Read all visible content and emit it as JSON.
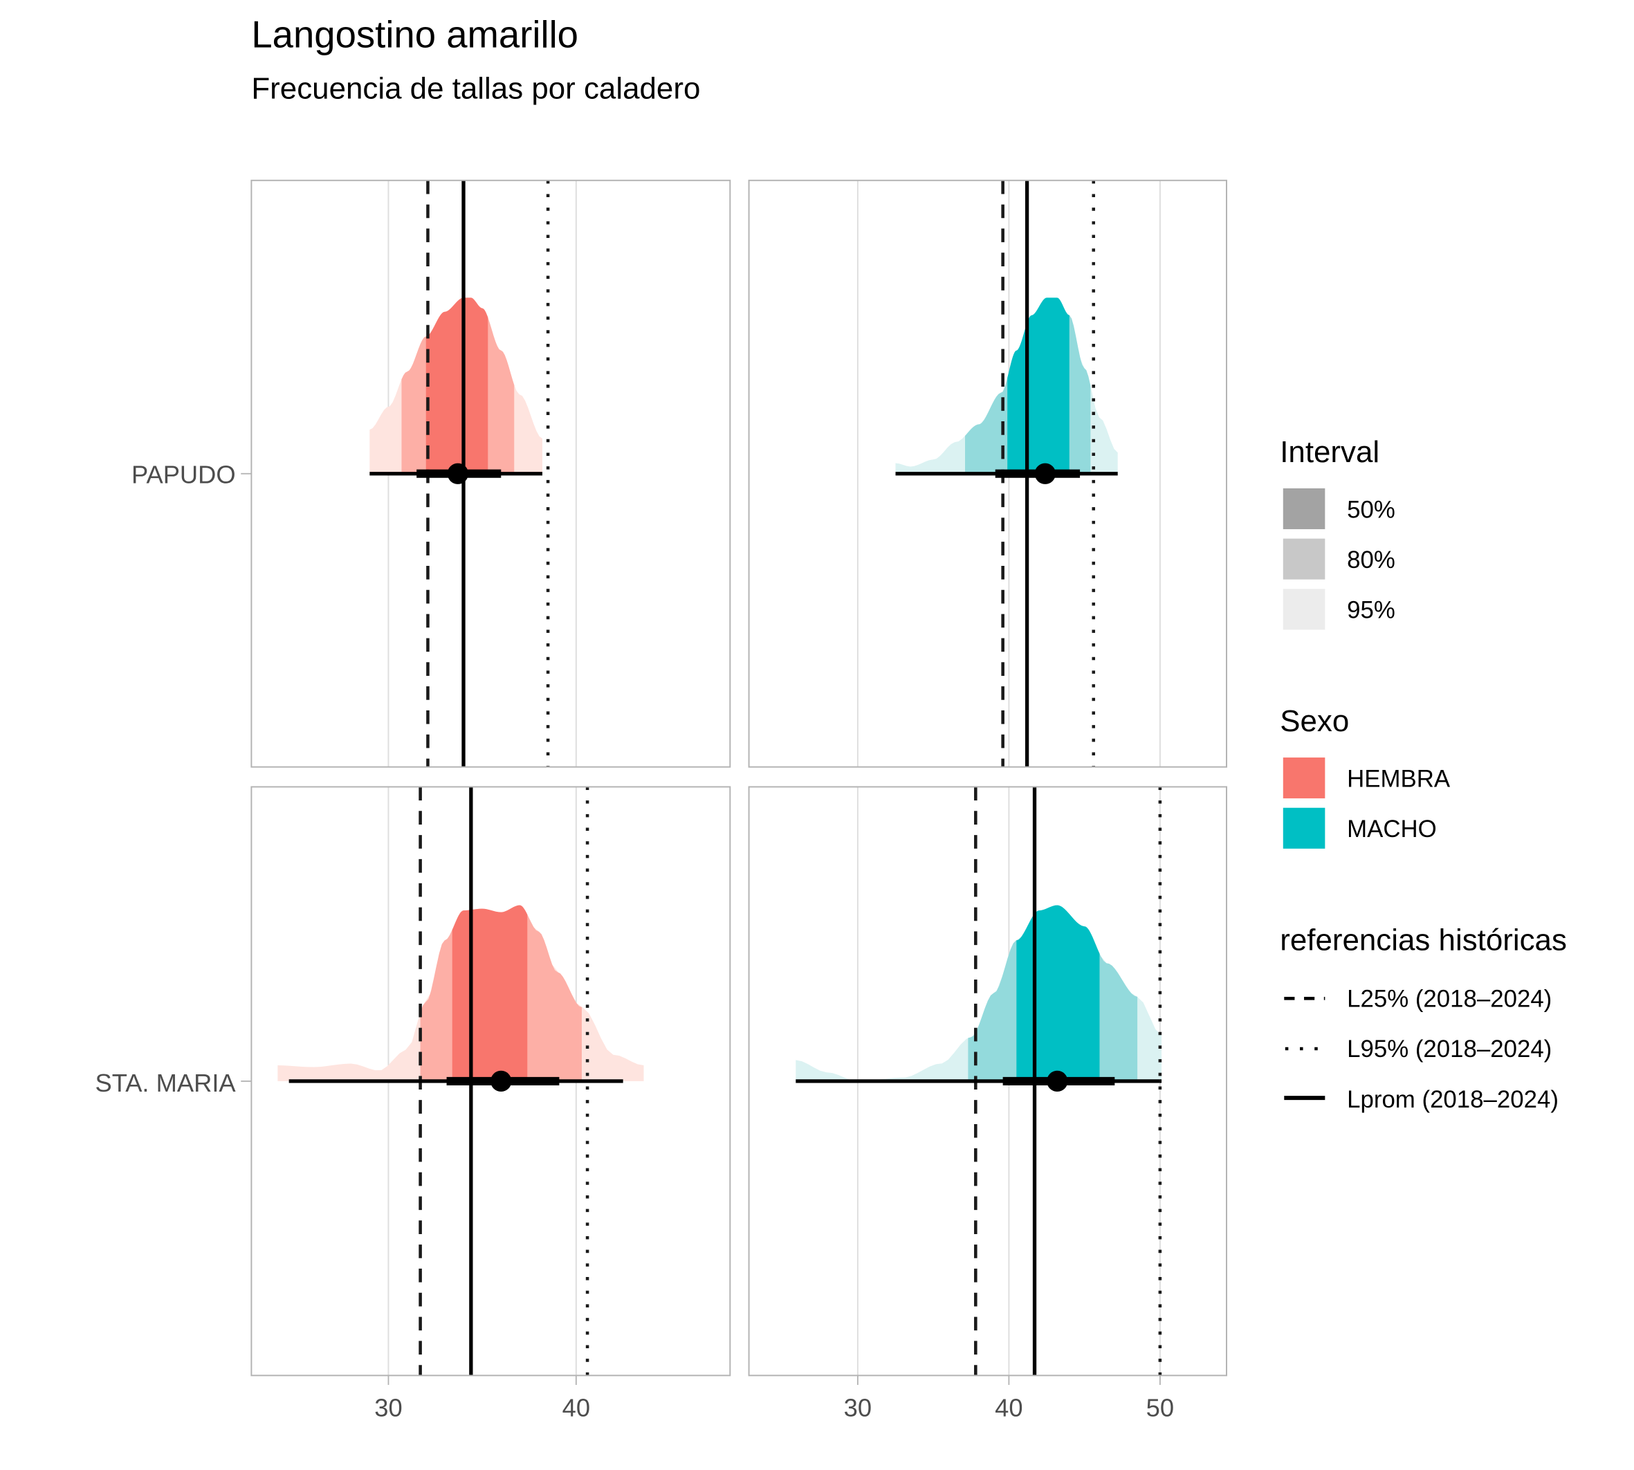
{
  "chart_data": {
    "type": "area",
    "title": "Langostino amarillo",
    "subtitle": "Frecuencia de tallas por caladero",
    "xlabel": "",
    "ylabel": "",
    "grid": true,
    "colors": {
      "HEMBRA": {
        "c50": "#f8766d",
        "c80": "#fdafa6",
        "c95": "#fee4df"
      },
      "MACHO": {
        "c50": "#00bfc4",
        "c80": "#93dadc",
        "c95": "#dbf2f2"
      },
      "interval_legend": {
        "50%": "#a3a3a3",
        "80%": "#c8c8c8",
        "95%": "#ececec"
      }
    },
    "columns": [
      {
        "sexo": "HEMBRA",
        "xlim": [
          22.7,
          48.2
        ],
        "ticks": [
          30,
          40
        ]
      },
      {
        "sexo": "MACHO",
        "xlim": [
          22.8,
          54.4
        ],
        "ticks": [
          30,
          40,
          50
        ]
      }
    ],
    "rows": [
      "PAPUDO",
      "STA. MARIA"
    ],
    "panels": [
      {
        "caladero": "PAPUDO",
        "sexo": "HEMBRA",
        "density_x": [
          29.0,
          30.0,
          31.0,
          32.0,
          33.0,
          34.0,
          34.4,
          35.0,
          36.0,
          37.0,
          38.2
        ],
        "density_y": [
          0.25,
          0.38,
          0.58,
          0.78,
          0.92,
          1.0,
          1.0,
          0.94,
          0.7,
          0.45,
          0.2
        ],
        "point": 33.7,
        "interval50": [
          31.5,
          36.0
        ],
        "interval95": [
          29.0,
          38.2
        ],
        "shade50": [
          32.0,
          35.3
        ],
        "shade80": [
          30.7,
          36.7
        ],
        "L25": 32.1,
        "Lprom": 34.0,
        "L95": 38.5
      },
      {
        "caladero": "PAPUDO",
        "sexo": "MACHO",
        "density_x": [
          32.5,
          33.5,
          35.0,
          36.5,
          38.0,
          39.5,
          40.5,
          41.5,
          42.5,
          43.2,
          44.0,
          45.0,
          46.0,
          47.2
        ],
        "density_y": [
          0.06,
          0.04,
          0.08,
          0.18,
          0.28,
          0.46,
          0.7,
          0.9,
          1.0,
          1.0,
          0.9,
          0.6,
          0.32,
          0.12
        ],
        "point": 42.4,
        "interval50": [
          39.1,
          44.7
        ],
        "interval95": [
          32.5,
          47.2
        ],
        "shade50": [
          39.9,
          44.0
        ],
        "shade80": [
          37.1,
          45.4
        ],
        "L25": 39.6,
        "Lprom": 41.2,
        "L95": 45.6
      },
      {
        "caladero": "STA. MARIA",
        "sexo": "HEMBRA",
        "density_x": [
          24.1,
          26.0,
          28.0,
          29.5,
          31.0,
          32.0,
          33.0,
          34.0,
          35.0,
          36.0,
          37.0,
          38.0,
          39.0,
          40.3,
          42.0,
          43.6
        ],
        "density_y": [
          0.09,
          0.08,
          0.1,
          0.06,
          0.18,
          0.45,
          0.8,
          0.97,
          0.98,
          0.96,
          1.0,
          0.85,
          0.62,
          0.42,
          0.15,
          0.09
        ],
        "point": 36.0,
        "interval50": [
          33.1,
          39.1
        ],
        "interval95": [
          24.7,
          42.5
        ],
        "shade50": [
          33.4,
          37.4
        ],
        "shade80": [
          31.7,
          40.3
        ],
        "L25": 31.7,
        "Lprom": 34.4,
        "L95": 40.6
      },
      {
        "caladero": "STA. MARIA",
        "sexo": "MACHO",
        "density_x": [
          25.9,
          28.0,
          30.0,
          33.0,
          35.5,
          37.5,
          39.0,
          40.5,
          42.0,
          43.2,
          45.0,
          46.5,
          48.5,
          50.1
        ],
        "density_y": [
          0.12,
          0.05,
          0.0,
          0.02,
          0.1,
          0.25,
          0.5,
          0.8,
          0.97,
          1.0,
          0.88,
          0.67,
          0.48,
          0.26
        ],
        "point": 43.2,
        "interval50": [
          39.6,
          47.0
        ],
        "interval95": [
          25.9,
          50.1
        ],
        "shade50": [
          40.5,
          46.0
        ],
        "shade80": [
          37.3,
          48.5
        ],
        "L25": 37.8,
        "Lprom": 41.7,
        "L95": 50.0
      }
    ],
    "legends": {
      "interval": {
        "title": "Interval",
        "items": [
          "50%",
          "80%",
          "95%"
        ]
      },
      "sexo": {
        "title": "Sexo",
        "items": [
          "HEMBRA",
          "MACHO"
        ]
      },
      "referencias": {
        "title": "referencias históricas",
        "items": [
          "L25% (2018–2024)",
          "L95% (2018–2024)",
          "Lprom (2018–2024)"
        ]
      }
    }
  }
}
